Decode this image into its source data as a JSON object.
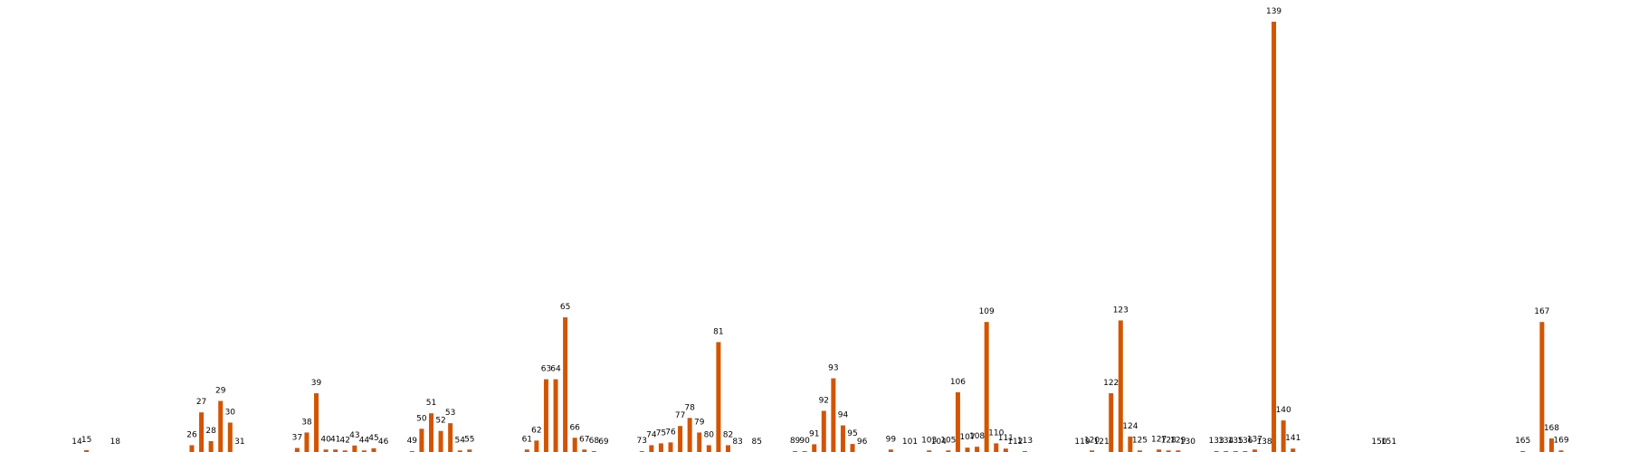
{
  "chart_data": {
    "type": "bar",
    "title": "",
    "xlabel": "",
    "ylabel": "",
    "axes_visible": false,
    "grid": false,
    "bar_color": "#D35400",
    "ylim": [
      0,
      139
    ],
    "x": [
      14,
      15,
      18,
      26,
      27,
      28,
      29,
      30,
      31,
      37,
      38,
      39,
      40,
      41,
      42,
      43,
      44,
      45,
      46,
      49,
      50,
      51,
      52,
      53,
      54,
      55,
      61,
      62,
      63,
      64,
      65,
      66,
      67,
      68,
      69,
      73,
      74,
      75,
      76,
      77,
      78,
      79,
      80,
      81,
      82,
      83,
      85,
      89,
      90,
      91,
      92,
      93,
      94,
      95,
      96,
      99,
      101,
      103,
      104,
      105,
      106,
      107,
      108,
      109,
      110,
      111,
      112,
      113,
      119,
      120,
      121,
      122,
      123,
      124,
      125,
      127,
      128,
      129,
      130,
      133,
      134,
      135,
      136,
      137,
      138,
      139,
      140,
      141,
      150,
      151,
      165,
      167,
      168,
      169
    ],
    "labels": [
      "14",
      "15",
      "18",
      "26",
      "27",
      "28",
      "29",
      "30",
      "31",
      "37",
      "38",
      "39",
      "40",
      "41",
      "42",
      "43",
      "44",
      "45",
      "46",
      "49",
      "50",
      "51",
      "52",
      "53",
      "54",
      "55",
      "61",
      "62",
      "63",
      "64",
      "65",
      "66",
      "67",
      "68",
      "69",
      "73",
      "74",
      "75",
      "76",
      "77",
      "78",
      "79",
      "80",
      "81",
      "82",
      "83",
      "85",
      "89",
      "90",
      "91",
      "92",
      "93",
      "94",
      "95",
      "96",
      "99",
      "101",
      "103",
      "104",
      "105",
      "106",
      "107",
      "108",
      "109",
      "110",
      "111",
      "112",
      "113",
      "119",
      "120",
      "121",
      "122",
      "123",
      "124",
      "125",
      "127",
      "128",
      "129",
      "130",
      "133",
      "134",
      "135",
      "136",
      "137",
      "138",
      "139",
      "140",
      "141",
      "150",
      "151",
      "165",
      "167",
      "168",
      "169"
    ],
    "values": [
      0,
      0.6,
      0,
      2.2,
      12.8,
      3.5,
      16.5,
      9.5,
      0,
      1.3,
      6.3,
      19,
      0.8,
      0.8,
      0.5,
      2.1,
      0.5,
      1.2,
      0,
      0.3,
      7.5,
      12.5,
      6.8,
      9.3,
      0.5,
      0.8,
      0.8,
      3.7,
      23.5,
      23.5,
      43.5,
      4.6,
      0.8,
      0.3,
      0,
      0.3,
      2.2,
      2.8,
      3.1,
      8.4,
      11,
      6.3,
      2.2,
      35.5,
      2.2,
      0,
      0,
      0.3,
      0.3,
      2.5,
      13.3,
      23.8,
      8.6,
      2.6,
      0,
      0.8,
      0,
      0.5,
      0,
      0.5,
      19.3,
      1.4,
      1.7,
      42,
      2.8,
      1.1,
      0,
      0.3,
      0,
      0.5,
      0,
      19,
      42.5,
      5,
      0.5,
      0.8,
      0.5,
      0.5,
      0,
      0.3,
      0.3,
      0.3,
      0.3,
      0.8,
      0,
      139,
      10.2,
      1.1,
      0,
      0,
      0.3,
      42,
      4.4,
      0.5
    ]
  }
}
